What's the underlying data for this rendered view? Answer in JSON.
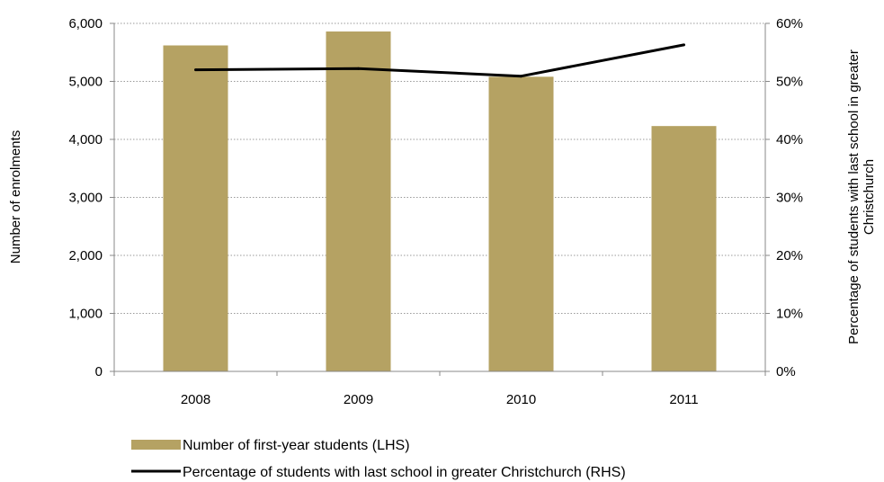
{
  "chart_data": {
    "type": "bar",
    "categories": [
      "2008",
      "2009",
      "2010",
      "2011"
    ],
    "series": [
      {
        "name": "Number of first-year students (LHS)",
        "type": "bar",
        "axis": "left",
        "values": [
          5620,
          5860,
          5080,
          4230
        ],
        "color": "#b5a263"
      },
      {
        "name": "Percentage of students with last school in greater Christchurch (RHS)",
        "type": "line",
        "axis": "right",
        "values": [
          0.52,
          0.522,
          0.509,
          0.563
        ],
        "color": "#000000"
      }
    ],
    "ylabel": "Number of enrolments",
    "ylim": [
      0,
      6000
    ],
    "yticks": [
      "0",
      "1,000",
      "2,000",
      "3,000",
      "4,000",
      "5,000",
      "6,000"
    ],
    "y2label_lines": [
      "Percentage of students with last school in greater",
      "Christchurch"
    ],
    "y2lim": [
      0,
      0.6
    ],
    "y2ticks": [
      "0%",
      "10%",
      "20%",
      "30%",
      "40%",
      "50%",
      "60%"
    ],
    "grid": "horizontal-dotted",
    "legend_position": "bottom"
  }
}
